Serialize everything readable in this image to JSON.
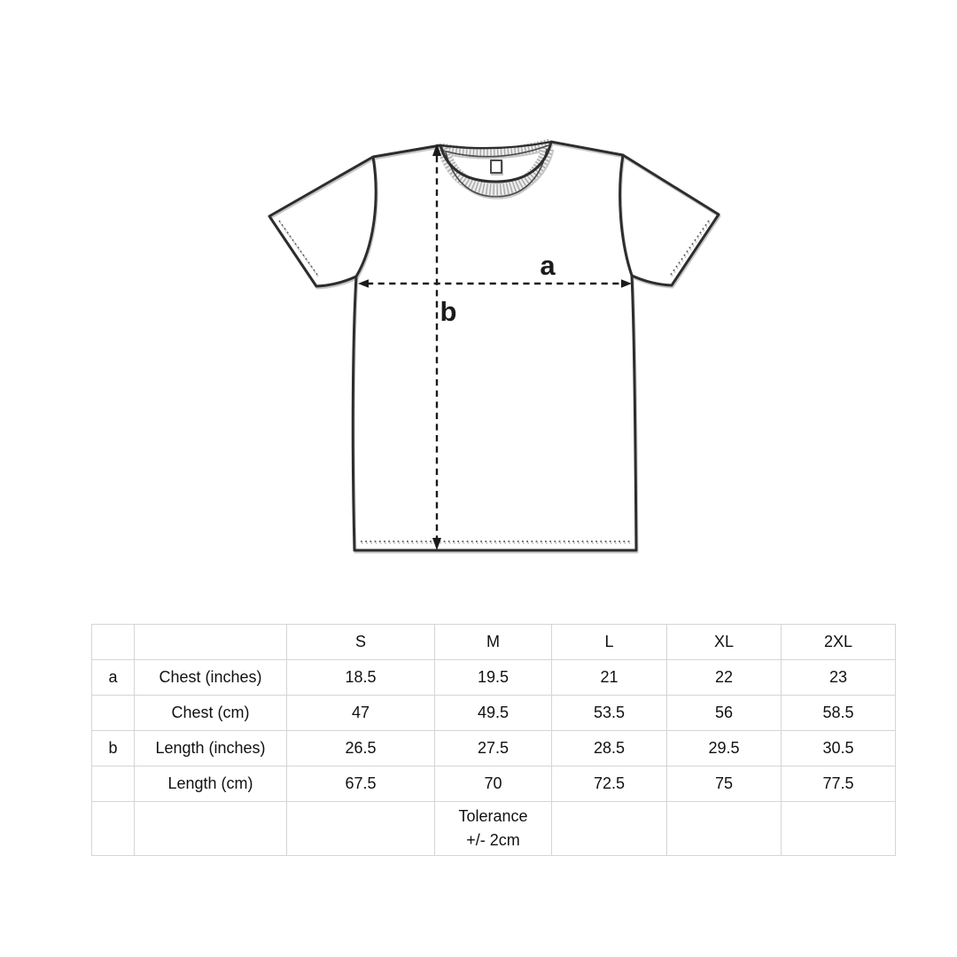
{
  "page": {
    "background": "#ffffff"
  },
  "diagram": {
    "label_a": "a",
    "label_b": "b"
  },
  "size_table": {
    "header": [
      "",
      "",
      "S",
      "M",
      "L",
      "XL",
      "2XL"
    ],
    "rows": [
      {
        "key": "a",
        "label": "Chest (inches)",
        "values": [
          "18.5",
          "19.5",
          "21",
          "22",
          "23"
        ]
      },
      {
        "key": "",
        "label": "Chest (cm)",
        "values": [
          "47",
          "49.5",
          "53.5",
          "56",
          "58.5"
        ]
      },
      {
        "key": "b",
        "label": "Length (inches)",
        "values": [
          "26.5",
          "27.5",
          "28.5",
          "29.5",
          "30.5"
        ]
      },
      {
        "key": "",
        "label": "Length (cm)",
        "values": [
          "67.5",
          "70",
          "72.5",
          "75",
          "77.5"
        ]
      }
    ],
    "tolerance": {
      "line1": "Tolerance",
      "line2": "+/- 2cm",
      "column_index": 3
    }
  },
  "colors": {
    "table_border": "#d5d5d5",
    "text": "#111111",
    "outline": "#2d2d2d",
    "collar_band": "#ececec",
    "collar_rib": "#a8a8a8",
    "stitch": "#5a5a5a",
    "measure_line": "#1b1b1b"
  }
}
